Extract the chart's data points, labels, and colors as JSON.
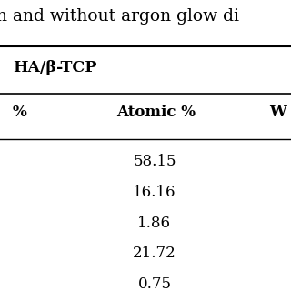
{
  "title_text": "h and without argon glow di",
  "section_header": "HA/β-TCP",
  "col_headers": [
    "%",
    "Atomic %",
    "W"
  ],
  "atomic_values": [
    "58.15",
    "16.16",
    "1.86",
    "21.72",
    "0.75"
  ],
  "bg_color": "#ffffff",
  "text_color": "#000000",
  "title_fontsize": 13.5,
  "header_fontsize": 12.5,
  "col_header_fontsize": 12,
  "data_fontsize": 12,
  "title_font_weight": "normal",
  "header_font_weight": "bold",
  "col_header_font_weight": "bold"
}
